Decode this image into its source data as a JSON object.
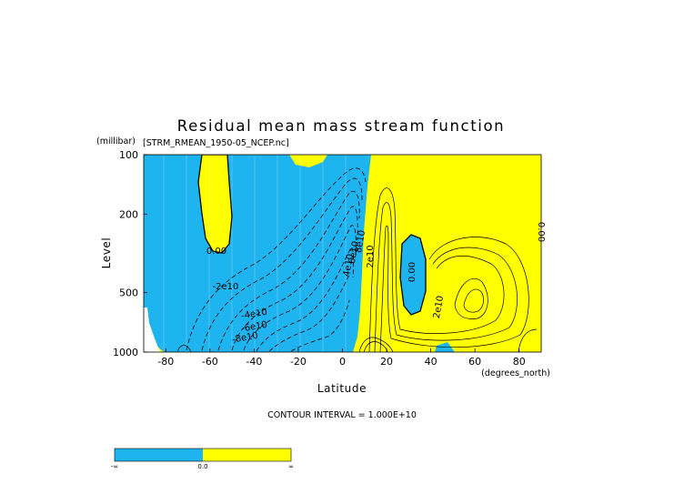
{
  "chart_data": {
    "type": "contour",
    "title": "Residual mean mass stream function",
    "subtitle": "[STRM_RMEAN_1950-05_NCEP.nc]",
    "xlabel": "Latitude",
    "x_units": "(degrees_north)",
    "ylabel": "Level",
    "y_units": "(millibar)",
    "xlim": [
      -90,
      90
    ],
    "ylim": [
      1000,
      100
    ],
    "y_scale": "log",
    "x_ticks": [
      "-80",
      "-60",
      "-40",
      "-20",
      "0",
      "20",
      "40",
      "60",
      "80"
    ],
    "y_ticks": [
      "100",
      "200",
      "500",
      "1000"
    ],
    "contour_interval_text": "CONTOUR INTERVAL = 1.000E+10",
    "contour_labels": [
      "0.00",
      "0.00",
      "0.00",
      "-2e10",
      "-4e10",
      "-6e10",
      "-8e10",
      "2e10",
      "2e10",
      "4e10",
      "6e10",
      "8e10"
    ],
    "colorbar": {
      "labels": [
        "-∞",
        "0.0",
        "∞"
      ],
      "colors": [
        "#1eb4f0",
        "#ffff00"
      ]
    },
    "fill_colors": {
      "negative": "#1eb4f0",
      "positive": "#ffff00"
    }
  }
}
